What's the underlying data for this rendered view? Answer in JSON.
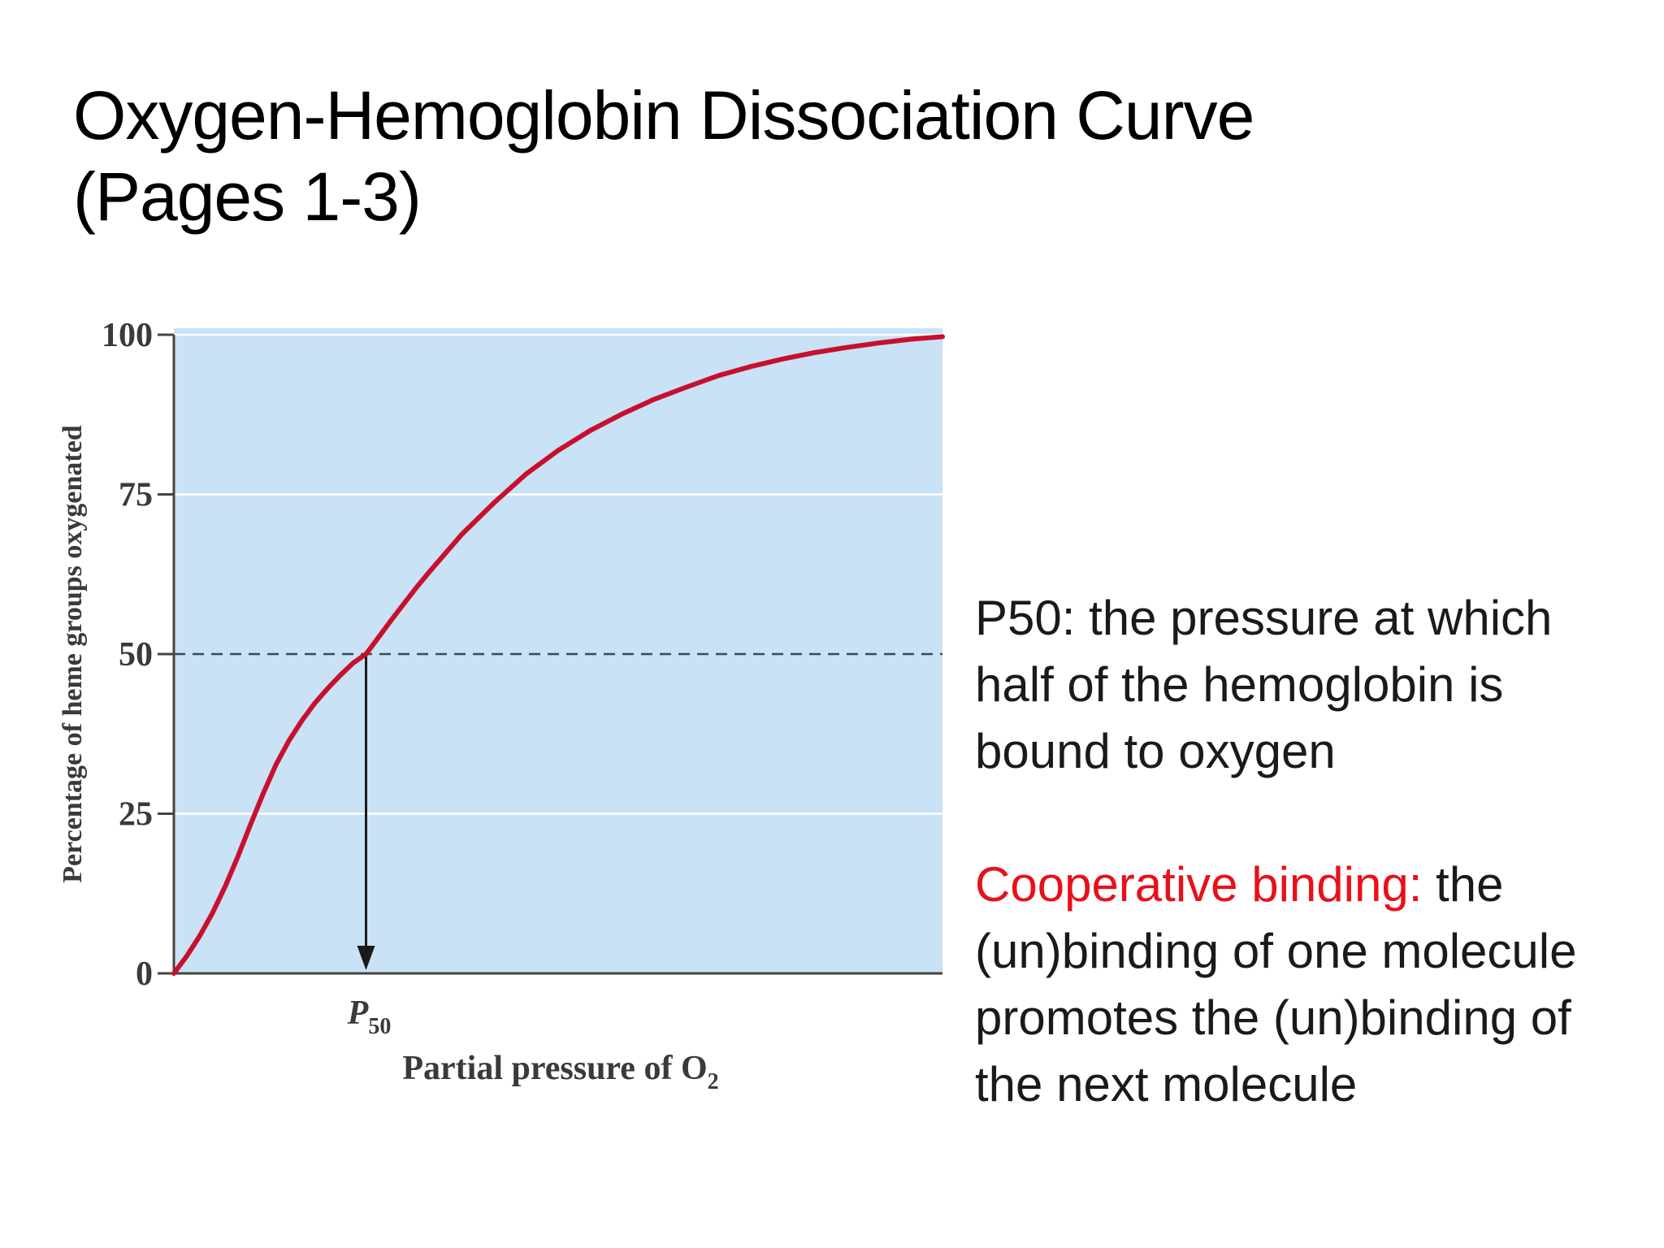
{
  "title": {
    "line1": "Oxygen-Hemoglobin Dissociation Curve",
    "line2": "(Pages 1-3)"
  },
  "definitions": {
    "p50_term": "P50:",
    "p50_text": " the pressure at which half of the hemoglobin is bound to oxygen",
    "coop_term": "Cooperative binding:",
    "coop_text": " the (un)binding of one molecule promotes the (un)binding of the next molecule"
  },
  "colors": {
    "plot_background": "#c9e2f5",
    "curve": "#c8102e",
    "highlight_term": "#e8101a"
  },
  "chart_data": {
    "type": "line",
    "title": "",
    "xlabel": "Partial pressure of O",
    "xlabel_subscript": "2",
    "ylabel": "Percentage of heme groups oxygenated",
    "ylim": [
      0,
      100
    ],
    "y_ticks": [
      "0",
      "25",
      "50",
      "75",
      "100"
    ],
    "x_ticks": [],
    "grid": "horizontal at 25, 50, 75, 100",
    "p50_marker": {
      "label": "P",
      "subscript": "50",
      "y": 50,
      "x": 30
    },
    "series": [
      {
        "points": [
          [
            0,
            0
          ],
          [
            2,
            2.7
          ],
          [
            4,
            5.8
          ],
          [
            6,
            9.4
          ],
          [
            8,
            13.6
          ],
          [
            10,
            18.3
          ],
          [
            12,
            23.4
          ],
          [
            14,
            28.3
          ],
          [
            16,
            32.8
          ],
          [
            18,
            36.5
          ],
          [
            20,
            39.6
          ],
          [
            22,
            42.3
          ],
          [
            24,
            44.6
          ],
          [
            26,
            46.7
          ],
          [
            28,
            48.6
          ],
          [
            30,
            50.0
          ],
          [
            32,
            52.7
          ],
          [
            34,
            55.4
          ],
          [
            36,
            58.0
          ],
          [
            38,
            60.6
          ],
          [
            40,
            63.0
          ],
          [
            45,
            68.8
          ],
          [
            50,
            73.7
          ],
          [
            55,
            78.2
          ],
          [
            60,
            81.9
          ],
          [
            65,
            85.0
          ],
          [
            70,
            87.6
          ],
          [
            75,
            89.9
          ],
          [
            80,
            91.8
          ],
          [
            85,
            93.6
          ],
          [
            90,
            95.0
          ],
          [
            95,
            96.2
          ],
          [
            100,
            97.2
          ],
          [
            105,
            98.0
          ],
          [
            110,
            98.7
          ],
          [
            115,
            99.3
          ],
          [
            120,
            99.7
          ]
        ]
      }
    ]
  }
}
